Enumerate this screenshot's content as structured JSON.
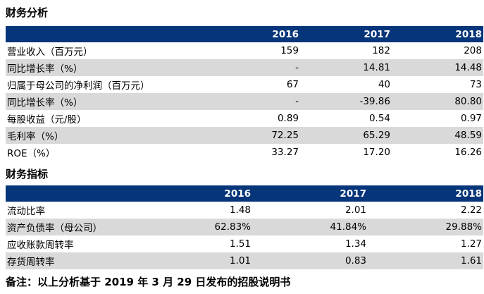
{
  "financial_analysis": {
    "title": "财务分析",
    "headers": [
      "",
      "2016",
      "2017",
      "2018"
    ],
    "rows": [
      {
        "label": "营业收入（百万元）",
        "values": [
          "159",
          "182",
          "208"
        ]
      },
      {
        "label": "同比增长率（%）",
        "values": [
          "-",
          "14.81",
          "14.48"
        ]
      },
      {
        "label": "归属于母公司的净利润（百万元）",
        "values": [
          "67",
          "40",
          "73"
        ]
      },
      {
        "label": "同比增长率（%）",
        "values": [
          "-",
          "-39.86",
          "80.80"
        ]
      },
      {
        "label": "每股收益（元/股）",
        "values": [
          "0.89",
          "0.54",
          "0.97"
        ]
      },
      {
        "label": "毛利率（%）",
        "values": [
          "72.25",
          "65.29",
          "48.59"
        ]
      },
      {
        "label": "ROE（%）",
        "values": [
          "33.27",
          "17.20",
          "16.26"
        ]
      }
    ]
  },
  "financial_indicators": {
    "title": "财务指标",
    "headers": [
      "",
      "2016",
      "2017",
      "2018"
    ],
    "rows": [
      {
        "label": "流动比率",
        "values": [
          "1.48",
          "2.01",
          "2.22"
        ]
      },
      {
        "label": "资产负债率（母公司）",
        "values": [
          "62.83%",
          "41.84%",
          "29.88%"
        ]
      },
      {
        "label": "应收账款周转率",
        "values": [
          "1.51",
          "1.34",
          "1.27"
        ]
      },
      {
        "label": "存货周转率",
        "values": [
          "1.01",
          "0.83",
          "1.61"
        ]
      }
    ]
  },
  "footnote": "备注：以上分析基于 2019 年 3 月 29 日发布的招股说明书",
  "colors": {
    "header_bg": "#06357a",
    "shade_bg": "#d9d9d9"
  }
}
